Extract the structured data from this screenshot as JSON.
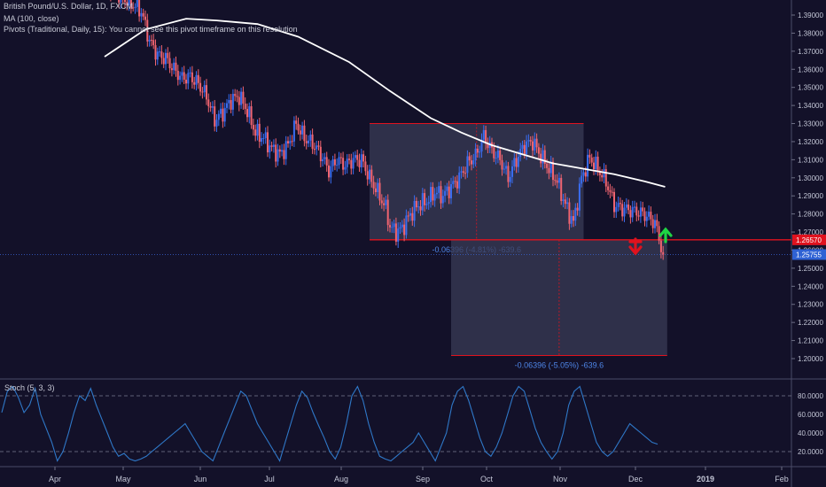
{
  "header": {
    "symbol": "British Pound/U.S. Dollar, 1D, FXCM",
    "ma": "MA (100, close)",
    "pivots": "Pivots (Traditional, Daily, 15): You cannot see this pivot timeframe on this resolution"
  },
  "stoch_label": "Stoch (5, 3, 3)",
  "colors": {
    "bg": "#131129",
    "up": "#3a6df0",
    "down": "#f06470",
    "ma": "#ffffff",
    "stoch": "#2f78c8",
    "level": "#e0121e",
    "box": "#3a3b55"
  },
  "chart_data": [
    {
      "type": "candlestick",
      "title": "British Pound/U.S. Dollar, 1D, FXCM",
      "y_ticks": [
        "1.39000",
        "1.38000",
        "1.37000",
        "1.36000",
        "1.35000",
        "1.34000",
        "1.33000",
        "1.32000",
        "1.31000",
        "1.30000",
        "1.29000",
        "1.28000",
        "1.27000",
        "1.26000",
        "1.25000",
        "1.24000",
        "1.23000",
        "1.22000",
        "1.21000",
        "1.20000"
      ],
      "ylim": [
        1.195,
        1.398
      ],
      "x_labels": [
        "Apr",
        "May",
        "Jun",
        "Jul",
        "Aug",
        "Sep",
        "Oct",
        "Nov",
        "Dec",
        "2019",
        "Feb"
      ],
      "close_path": [
        [
          0,
          1.41
        ],
        [
          8,
          1.4
        ],
        [
          15,
          1.395
        ],
        [
          18,
          1.392
        ],
        [
          22,
          1.376
        ],
        [
          26,
          1.368
        ],
        [
          30,
          1.366
        ],
        [
          34,
          1.36
        ],
        [
          38,
          1.355
        ],
        [
          42,
          1.356
        ],
        [
          46,
          1.352
        ],
        [
          50,
          1.345
        ],
        [
          54,
          1.332
        ],
        [
          58,
          1.336
        ],
        [
          62,
          1.343
        ],
        [
          66,
          1.345
        ],
        [
          70,
          1.337
        ],
        [
          74,
          1.325
        ],
        [
          78,
          1.322
        ],
        [
          82,
          1.316
        ],
        [
          86,
          1.313
        ],
        [
          90,
          1.318
        ],
        [
          94,
          1.33
        ],
        [
          98,
          1.322
        ],
        [
          102,
          1.319
        ],
        [
          106,
          1.313
        ],
        [
          110,
          1.304
        ],
        [
          114,
          1.31
        ],
        [
          118,
          1.307
        ],
        [
          122,
          1.31
        ],
        [
          126,
          1.31
        ],
        [
          130,
          1.3
        ],
        [
          134,
          1.292
        ],
        [
          138,
          1.283
        ],
        [
          140,
          1.273
        ],
        [
          143,
          1.27
        ],
        [
          146,
          1.272
        ],
        [
          150,
          1.28
        ],
        [
          154,
          1.285
        ],
        [
          158,
          1.287
        ],
        [
          162,
          1.292
        ],
        [
          166,
          1.29
        ],
        [
          170,
          1.295
        ],
        [
          174,
          1.3
        ],
        [
          178,
          1.308
        ],
        [
          182,
          1.312
        ],
        [
          186,
          1.323
        ],
        [
          190,
          1.315
        ],
        [
          194,
          1.31
        ],
        [
          198,
          1.3
        ],
        [
          202,
          1.31
        ],
        [
          206,
          1.318
        ],
        [
          210,
          1.32
        ],
        [
          214,
          1.312
        ],
        [
          218,
          1.305
        ],
        [
          222,
          1.298
        ],
        [
          226,
          1.285
        ],
        [
          230,
          1.275
        ],
        [
          234,
          1.3
        ],
        [
          238,
          1.311
        ],
        [
          242,
          1.305
        ],
        [
          246,
          1.298
        ],
        [
          250,
          1.285
        ],
        [
          254,
          1.283
        ],
        [
          258,
          1.282
        ],
        [
          262,
          1.281
        ],
        [
          266,
          1.279
        ],
        [
          270,
          1.275
        ],
        [
          274,
          1.258
        ]
      ],
      "last_close": 1.25755,
      "ma_path": [
        [
          0,
          1.367
        ],
        [
          20,
          1.382
        ],
        [
          40,
          1.388
        ],
        [
          55,
          1.387
        ],
        [
          75,
          1.385
        ],
        [
          95,
          1.378
        ],
        [
          120,
          1.364
        ],
        [
          140,
          1.348
        ],
        [
          160,
          1.333
        ],
        [
          175,
          1.325
        ],
        [
          190,
          1.318
        ],
        [
          205,
          1.313
        ],
        [
          220,
          1.308
        ],
        [
          235,
          1.305
        ],
        [
          250,
          1.302
        ],
        [
          265,
          1.298
        ],
        [
          275,
          1.295
        ]
      ],
      "annotations": {
        "level": {
          "value": 1.2657,
          "label": "1.26570"
        },
        "last_price": {
          "value": 1.25755,
          "label": "1.25755"
        },
        "range_top": {
          "high": 1.33,
          "low": 1.2657,
          "text": "-0.06396 (-4.81%) -639.6"
        },
        "range_bottom": {
          "high": 1.2657,
          "low": 1.2017,
          "text": "-0.06396 (-5.05%) -639.6"
        }
      }
    },
    {
      "type": "line",
      "title": "Stoch (5, 3, 3)",
      "y_ticks": [
        "80.0000",
        "60.0000",
        "40.0000",
        "20.0000"
      ],
      "ylim": [
        0,
        100
      ],
      "levels": [
        80,
        20
      ],
      "values": [
        62,
        85,
        90,
        78,
        62,
        70,
        88,
        60,
        45,
        30,
        10,
        20,
        40,
        62,
        80,
        75,
        88,
        70,
        55,
        40,
        25,
        15,
        18,
        12,
        10,
        12,
        15,
        20,
        25,
        30,
        35,
        40,
        45,
        50,
        40,
        30,
        20,
        15,
        10,
        25,
        40,
        55,
        70,
        85,
        80,
        65,
        50,
        40,
        30,
        20,
        10,
        30,
        50,
        70,
        85,
        78,
        62,
        48,
        35,
        20,
        12,
        25,
        50,
        80,
        90,
        75,
        50,
        30,
        15,
        12,
        10,
        15,
        20,
        25,
        30,
        40,
        30,
        20,
        10,
        25,
        40,
        70,
        85,
        90,
        75,
        55,
        35,
        20,
        15,
        25,
        40,
        60,
        80,
        90,
        85,
        65,
        45,
        30,
        20,
        12,
        20,
        40,
        70,
        85,
        90,
        70,
        50,
        30,
        20,
        15,
        20,
        30,
        40,
        50,
        45,
        40,
        35,
        30,
        28
      ]
    }
  ]
}
